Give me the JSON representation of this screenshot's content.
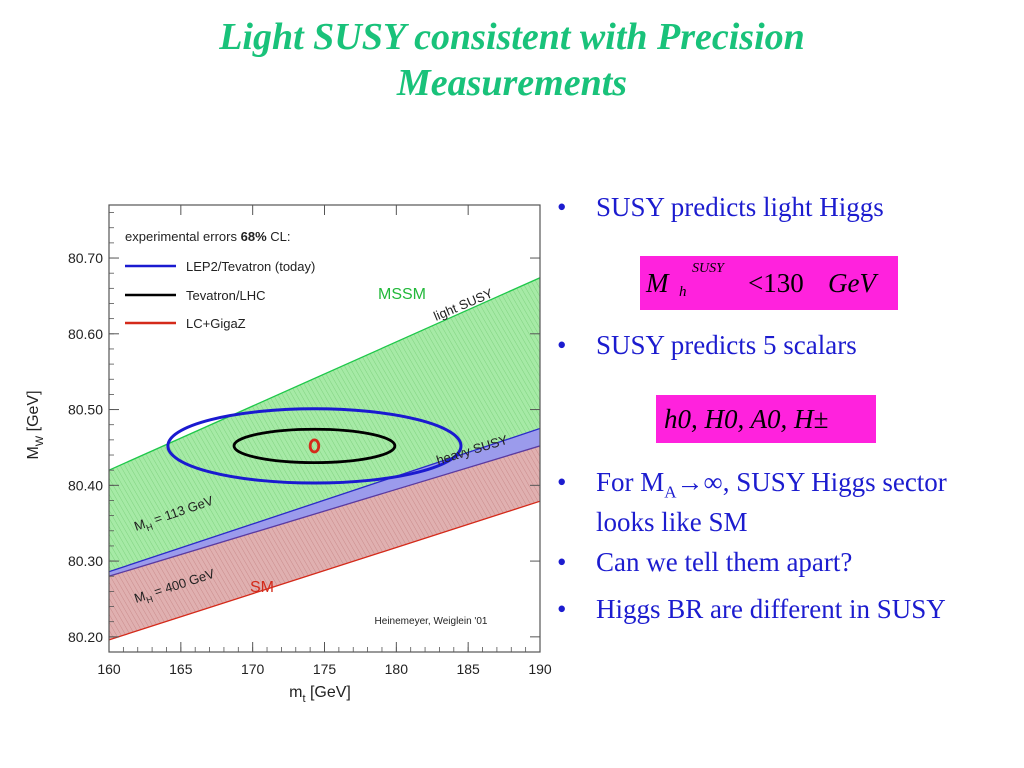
{
  "slide": {
    "title_line1": "Light SUSY consistent with Precision",
    "title_line2": "Measurements"
  },
  "bullets": [
    {
      "text": "SUSY predicts light Higgs"
    },
    {
      "text": "SUSY predicts 5 scalars"
    },
    {
      "text_prefix": "For M",
      "text_sub": "A",
      "text_suffix": "→∞, SUSY Higgs sector looks like SM"
    },
    {
      "text": "Can we tell them apart?"
    },
    {
      "text": "Higgs BR are different in SUSY"
    }
  ],
  "formulas": {
    "mass_bound": {
      "symbol": "M",
      "sub": "h",
      "sup": "SUSY",
      "relation": "<130",
      "unit": "GeV"
    },
    "scalars": {
      "text": "h0, H0, A0, H±"
    }
  },
  "chart_data": {
    "type": "area",
    "xlabel": "m",
    "xlabel_sub": "t",
    "xlabel_unit": " [GeV]",
    "ylabel": "M",
    "ylabel_sub": "W",
    "ylabel_unit": " [GeV]",
    "xlim": [
      160,
      190
    ],
    "ylim": [
      80.18,
      80.77
    ],
    "xticks": [
      "160",
      "165",
      "170",
      "175",
      "180",
      "185",
      "190"
    ],
    "yticks": [
      "80.20",
      "80.30",
      "80.40",
      "80.50",
      "80.60",
      "80.70"
    ],
    "legend_title_pre": "experimental errors ",
    "legend_title_bold": "68%",
    "legend_title_post": " CL:",
    "legend": [
      {
        "name": "LEP2/Tevatron (today)",
        "color": "#1a1ad0"
      },
      {
        "name": "Tevatron/LHC",
        "color": "#000000"
      },
      {
        "name": "LC+GigaZ",
        "color": "#d42a1a"
      }
    ],
    "regions": [
      {
        "name": "MSSM",
        "color": "#1ec84a",
        "fill": "#9be69b",
        "upper": [
          [
            160,
            80.42
          ],
          [
            190,
            80.674
          ]
        ],
        "lower": [
          [
            160,
            80.286
          ],
          [
            190,
            80.475
          ]
        ]
      },
      {
        "name": "SM",
        "color": "#d42a1a",
        "fill": "#d9a3a3",
        "upper": [
          [
            160,
            80.28
          ],
          [
            190,
            80.452
          ]
        ],
        "lower": [
          [
            160,
            80.196
          ],
          [
            190,
            80.379
          ]
        ]
      }
    ],
    "band": {
      "name": "MH = 113 GeV",
      "fill": "#7a7ae6",
      "upper": [
        [
          160,
          80.286
        ],
        [
          190,
          80.475
        ]
      ],
      "lower": [
        [
          160,
          80.28
        ],
        [
          190,
          80.452
        ]
      ]
    },
    "ellipses": [
      {
        "name": "LEP2/Tevatron (today)",
        "cx": 174.3,
        "cy": 80.452,
        "rx": 10.2,
        "ry": 0.049,
        "color": "#1a1ad0"
      },
      {
        "name": "Tevatron/LHC",
        "cx": 174.3,
        "cy": 80.452,
        "rx": 5.6,
        "ry": 0.022,
        "color": "#000000"
      },
      {
        "name": "LC+GigaZ",
        "cx": 174.3,
        "cy": 80.452,
        "rx": 0.3,
        "ry": 0.008,
        "color": "#d42a1a"
      }
    ],
    "annotations": {
      "mssm": "MSSM",
      "sm": "SM",
      "light_susy": "light SUSY",
      "heavy_susy": "heavy SUSY",
      "mh113_pre": "M",
      "mh113_sub": "H",
      "mh113_post": " = 113 GeV",
      "mh400_pre": "M",
      "mh400_sub": "H",
      "mh400_post": " = 400 GeV",
      "credit": "Heinemeyer, Weiglein '01"
    }
  }
}
